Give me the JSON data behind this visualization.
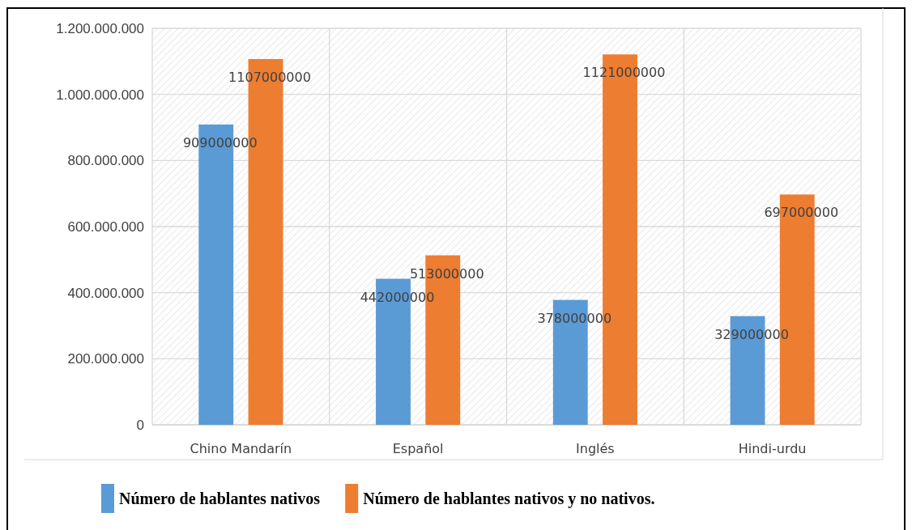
{
  "chart_data": {
    "type": "bar",
    "categories": [
      "Chino Mandarín",
      "Español",
      "Inglés",
      "Hindi-urdu"
    ],
    "series": [
      {
        "name": "Número de hablantes nativos",
        "color": "#5b9bd5",
        "values": [
          909000000,
          442000000,
          378000000,
          329000000
        ]
      },
      {
        "name": "Número de hablantes nativos y no nativos.",
        "color": "#ed7d31",
        "values": [
          1107000000,
          513000000,
          1121000000,
          697000000
        ]
      }
    ],
    "ylim": [
      0,
      1200000000
    ],
    "yticks": [
      0,
      {
        "value": 200000000,
        "label": "200.000.000"
      },
      {
        "value": 400000000,
        "label": "400.000.000"
      },
      {
        "value": 600000000,
        "label": "600.000.000"
      },
      {
        "value": 800000000,
        "label": "800.000.000"
      },
      {
        "value": 1000000000,
        "label": "1.000.000.000"
      },
      {
        "value": 1200000000,
        "label": "1.200.000.000"
      }
    ],
    "grid": true,
    "data_labels": true,
    "legend": "bottom"
  }
}
